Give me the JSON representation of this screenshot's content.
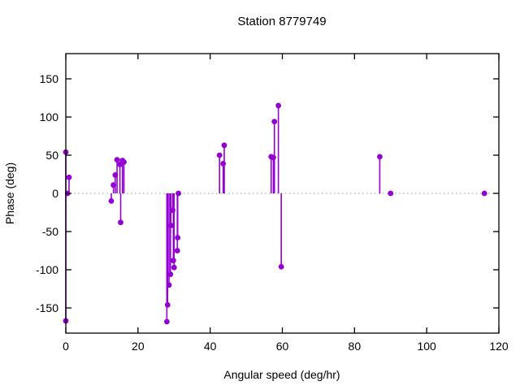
{
  "window": {
    "background": "#ffffff"
  },
  "colors": {
    "series": "#9400D3",
    "zero_line": "#9e9e9e",
    "axis": "#000000",
    "text": "#000000"
  },
  "chart_data": {
    "type": "scatter",
    "style": "impulses+points",
    "title": "Station 8779749",
    "xlabel": "Angular speed (deg/hr)",
    "ylabel": "Phase (deg)",
    "xlim": [
      0,
      120
    ],
    "ylim": [
      -183,
      183
    ],
    "xticks": [
      0,
      20,
      40,
      60,
      80,
      100,
      120
    ],
    "yticks": [
      -150,
      -100,
      -50,
      0,
      50,
      100,
      150
    ],
    "grid": false,
    "zero_line": true,
    "legend": "none",
    "marker_radius": 3.4,
    "points": [
      [
        0,
        54
      ],
      [
        0,
        -167
      ],
      [
        0.5,
        0
      ],
      [
        0.9,
        21
      ],
      [
        12.6,
        -10
      ],
      [
        13.2,
        11
      ],
      [
        13.7,
        24
      ],
      [
        14.2,
        44
      ],
      [
        15.0,
        38
      ],
      [
        15.2,
        -38
      ],
      [
        15.7,
        43
      ],
      [
        16.1,
        41
      ],
      [
        28.0,
        -168
      ],
      [
        28.2,
        -146
      ],
      [
        28.6,
        -120
      ],
      [
        29.0,
        -106
      ],
      [
        29.1,
        -42
      ],
      [
        29.6,
        -22
      ],
      [
        29.8,
        -88
      ],
      [
        30.0,
        -97
      ],
      [
        30.9,
        -75
      ],
      [
        31.0,
        -58
      ],
      [
        31.2,
        0
      ],
      [
        42.6,
        50
      ],
      [
        43.6,
        39
      ],
      [
        43.9,
        63
      ],
      [
        56.9,
        48
      ],
      [
        57.5,
        47
      ],
      [
        57.8,
        94
      ],
      [
        58.9,
        115
      ],
      [
        59.7,
        -96
      ],
      [
        87,
        48
      ],
      [
        90,
        0
      ],
      [
        116,
        0
      ]
    ]
  }
}
